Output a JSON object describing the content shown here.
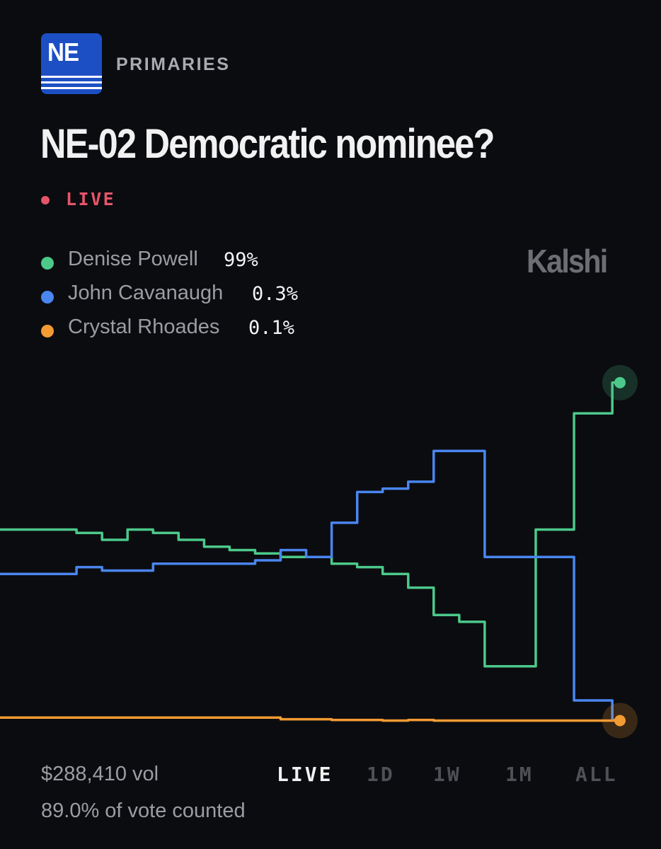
{
  "header": {
    "logo_text": "NE",
    "section_label": "PRIMARIES",
    "title": "NE-02 Democratic nominee?",
    "live_label": "LIVE",
    "brand": "Kalshi"
  },
  "legend": [
    {
      "name": "Denise Powell",
      "value": "99%",
      "color": "#4cc98a"
    },
    {
      "name": "John Cavanaugh",
      "value": "0.3%",
      "color": "#4a86f0"
    },
    {
      "name": "Crystal Rhoades",
      "value": "0.1%",
      "color": "#f39b33"
    }
  ],
  "footer": {
    "volume": "$288,410 vol",
    "vote_counted": "89.0% of vote counted",
    "tabs": [
      "LIVE",
      "1D",
      "1W",
      "1M",
      "ALL"
    ],
    "active_tab": "LIVE"
  },
  "chart_data": {
    "type": "line",
    "step": true,
    "ylim": [
      0,
      100
    ],
    "grid": false,
    "series": [
      {
        "name": "Denise Powell",
        "color": "#4cc98a",
        "points": [
          [
            0,
            56
          ],
          [
            2,
            56
          ],
          [
            3,
            55
          ],
          [
            4,
            53
          ],
          [
            5,
            56
          ],
          [
            6,
            55
          ],
          [
            7,
            53
          ],
          [
            8,
            51
          ],
          [
            9,
            50
          ],
          [
            10,
            49
          ],
          [
            11,
            48
          ],
          [
            12,
            48
          ],
          [
            13,
            46
          ],
          [
            14,
            45
          ],
          [
            15,
            43
          ],
          [
            16,
            39
          ],
          [
            17,
            31
          ],
          [
            18,
            29
          ],
          [
            19,
            16
          ],
          [
            20,
            16
          ],
          [
            21,
            56
          ],
          [
            22,
            56
          ],
          [
            22.25,
            56
          ],
          [
            22.5,
            90
          ],
          [
            23,
            90
          ],
          [
            24,
            99
          ],
          [
            24.3,
            99
          ]
        ]
      },
      {
        "name": "John Cavanaugh",
        "color": "#4a86f0",
        "points": [
          [
            0,
            43
          ],
          [
            2,
            43
          ],
          [
            3,
            45
          ],
          [
            4,
            44
          ],
          [
            5,
            44
          ],
          [
            6,
            46
          ],
          [
            7,
            46
          ],
          [
            8,
            46
          ],
          [
            9,
            46
          ],
          [
            10,
            47
          ],
          [
            11,
            50
          ],
          [
            12,
            48
          ],
          [
            13,
            58
          ],
          [
            14,
            67
          ],
          [
            15,
            68
          ],
          [
            16,
            70
          ],
          [
            17,
            79
          ],
          [
            18,
            79
          ],
          [
            19,
            48
          ],
          [
            20,
            48
          ],
          [
            21,
            48
          ],
          [
            22,
            48
          ],
          [
            22.5,
            6
          ],
          [
            23,
            6
          ],
          [
            24,
            0.3
          ],
          [
            24.3,
            0.3
          ]
        ]
      },
      {
        "name": "Crystal Rhoades",
        "color": "#f39b33",
        "points": [
          [
            0,
            1
          ],
          [
            8,
            1
          ],
          [
            9,
            1
          ],
          [
            11,
            0.5
          ],
          [
            12,
            0.5
          ],
          [
            13,
            0.3
          ],
          [
            14,
            0.3
          ],
          [
            15,
            0.1
          ],
          [
            16,
            0.3
          ],
          [
            17,
            0.1
          ],
          [
            24,
            0.1
          ],
          [
            24.3,
            0.1
          ]
        ]
      }
    ]
  }
}
